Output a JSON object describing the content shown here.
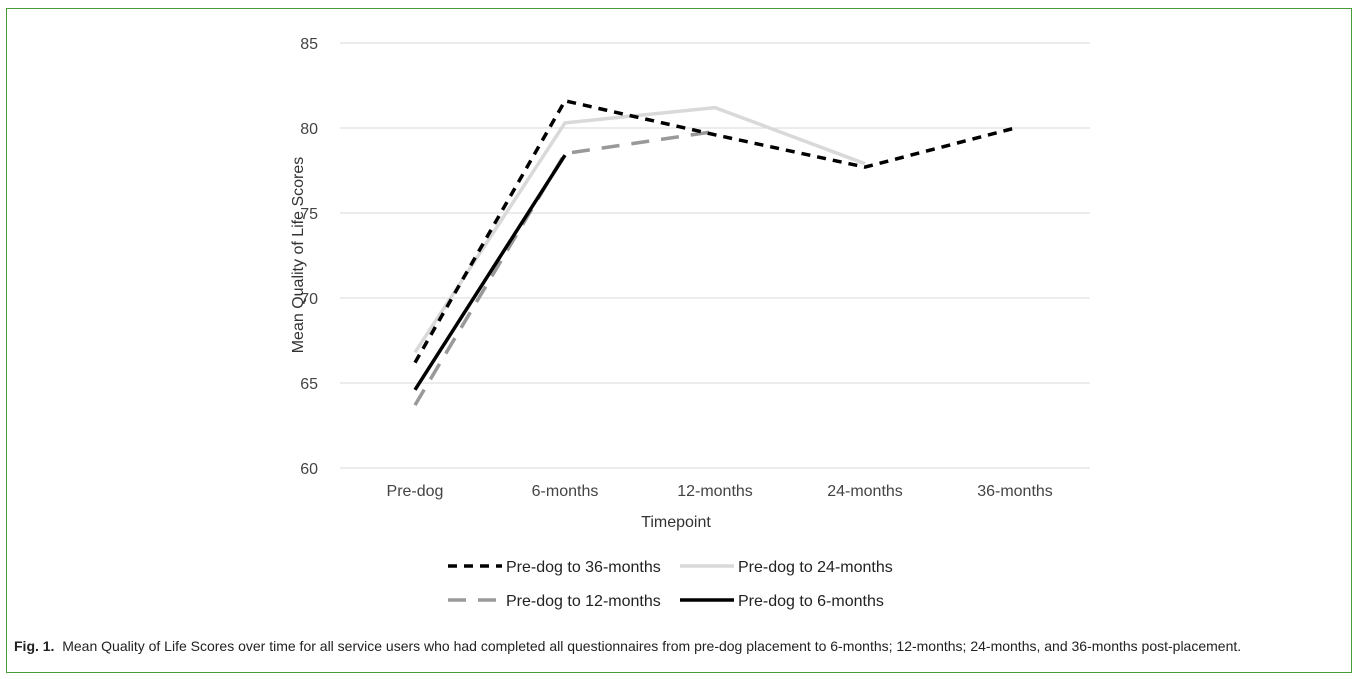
{
  "chart_data": {
    "type": "line",
    "categories": [
      "Pre-dog",
      "6-months",
      "12-months",
      "24-months",
      "36-months"
    ],
    "xlabel": "Timepoint",
    "ylabel": "Mean Quality of Life Scores",
    "ylim": [
      60,
      85
    ],
    "yticks": [
      60,
      65,
      70,
      75,
      80,
      85
    ],
    "grid": true,
    "legend_position": "bottom",
    "series": [
      {
        "name": "Pre-dog to 36-months",
        "values": [
          66.2,
          81.6,
          79.6,
          77.7,
          80.0
        ],
        "color": "#000000",
        "style": "dashed"
      },
      {
        "name": "Pre-dog to 24-months",
        "values": [
          66.8,
          80.3,
          81.2,
          77.9,
          null
        ],
        "color": "#d9d9d9",
        "style": "solid"
      },
      {
        "name": "Pre-dog to 12-months",
        "values": [
          63.7,
          78.5,
          79.8,
          null,
          null
        ],
        "color": "#999999",
        "style": "dashed-long"
      },
      {
        "name": "Pre-dog to 6-months",
        "values": [
          64.6,
          78.4,
          null,
          null,
          null
        ],
        "color": "#000000",
        "style": "solid"
      }
    ]
  },
  "caption": {
    "label": "Fig. 1.",
    "text": "Mean Quality of Life Scores over time for all service users who had completed all questionnaires from pre-dog placement to 6-months; 12-months; 24-months, and 36-months post-placement."
  }
}
